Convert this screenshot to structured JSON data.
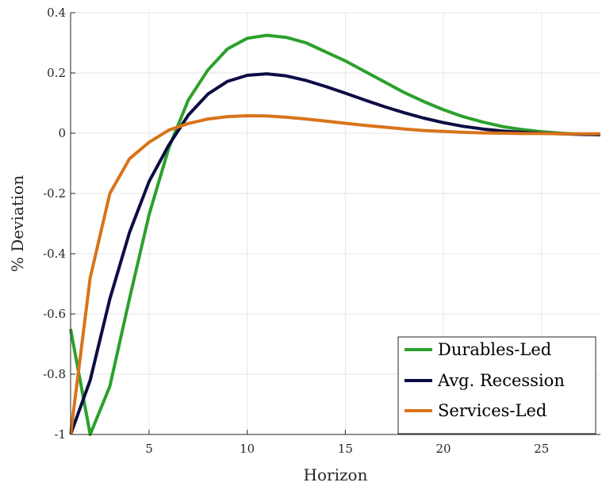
{
  "chart_data": {
    "type": "line",
    "xlabel": "Horizon",
    "ylabel": "% Deviation",
    "xlim": [
      1,
      28
    ],
    "ylim": [
      -1,
      0.4
    ],
    "xticks": [
      "5",
      "10",
      "15",
      "20",
      "25"
    ],
    "xtick_values": [
      5,
      10,
      15,
      20,
      25
    ],
    "yticks": [
      "-1",
      "-0.8",
      "-0.6",
      "-0.4",
      "-0.2",
      "0",
      "0.2",
      "0.4"
    ],
    "ytick_values": [
      -1,
      -0.8,
      -0.6,
      -0.4,
      -0.2,
      0,
      0.2,
      0.4
    ],
    "grid": true,
    "legend_position": "bottom-right",
    "series": [
      {
        "name": "Durables-Led",
        "color": "#2ca02c",
        "x": [
          1,
          2,
          3,
          4,
          5,
          6,
          7,
          8,
          9,
          10,
          11,
          12,
          13,
          14,
          15,
          16,
          17,
          18,
          19,
          20,
          21,
          22,
          23,
          24,
          25,
          26,
          27,
          28
        ],
        "values": [
          -0.65,
          -1.0,
          -0.84,
          -0.55,
          -0.27,
          -0.05,
          0.11,
          0.21,
          0.28,
          0.315,
          0.325,
          0.318,
          0.3,
          0.27,
          0.24,
          0.205,
          0.17,
          0.135,
          0.105,
          0.078,
          0.055,
          0.037,
          0.022,
          0.012,
          0.005,
          0.0,
          -0.003,
          -0.005
        ]
      },
      {
        "name": "Avg. Recession",
        "color": "#0d0d45",
        "x": [
          1,
          2,
          3,
          4,
          5,
          6,
          7,
          8,
          9,
          10,
          11,
          12,
          13,
          14,
          15,
          16,
          17,
          18,
          19,
          20,
          21,
          22,
          23,
          24,
          25,
          26,
          27,
          28
        ],
        "values": [
          -1.0,
          -0.82,
          -0.55,
          -0.33,
          -0.16,
          -0.04,
          0.06,
          0.13,
          0.172,
          0.192,
          0.197,
          0.19,
          0.175,
          0.155,
          0.133,
          0.11,
          0.088,
          0.068,
          0.05,
          0.035,
          0.023,
          0.014,
          0.007,
          0.003,
          0.0,
          -0.002,
          -0.004,
          -0.005
        ]
      },
      {
        "name": "Services-Led",
        "color": "#d9731a",
        "x": [
          1,
          2,
          3,
          4,
          5,
          6,
          7,
          8,
          9,
          10,
          11,
          12,
          13,
          14,
          15,
          16,
          17,
          18,
          19,
          20,
          21,
          22,
          23,
          24,
          25,
          26,
          27,
          28
        ],
        "values": [
          -1.0,
          -0.48,
          -0.2,
          -0.085,
          -0.03,
          0.01,
          0.032,
          0.047,
          0.055,
          0.058,
          0.057,
          0.053,
          0.047,
          0.04,
          0.033,
          0.026,
          0.02,
          0.014,
          0.009,
          0.006,
          0.003,
          0.001,
          0.0,
          -0.001,
          -0.001,
          -0.002,
          -0.002,
          -0.002
        ]
      }
    ]
  }
}
